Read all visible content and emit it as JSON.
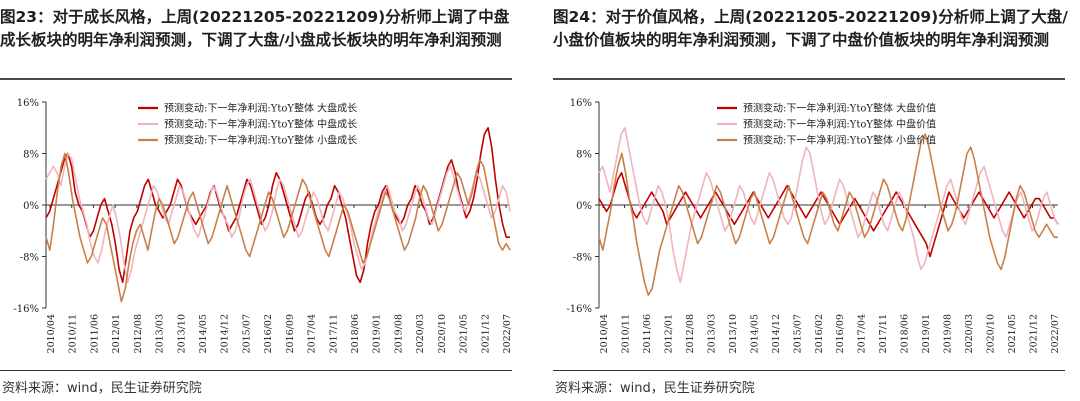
{
  "charts": [
    {
      "title": "图23：对于成长风格，上周(20221205-20221209)分析师上调了中盘成长板块的明年净利润预测，下调了大盘/小盘成长板块的明年净利润预测",
      "source": "资料来源：wind，民生证券研究院"
    },
    {
      "title": "图24：对于价值风格，上周(20221205-20221209)分析师上调了大盘/小盘价值板块的明年净利润预测，下调了中盘价值板块的明年净利润预测",
      "source": "资料来源：wind，民生证券研究院"
    }
  ],
  "chart_data": [
    {
      "type": "line",
      "title": "对于成长风格，上周(20221205-20221209)分析师上调了中盘成长板块的明年净利润预测，下调了大盘/小盘成长板块的明年净利润预测",
      "ylim": [
        -16,
        16
      ],
      "yticks": [
        -16,
        -8,
        0,
        8,
        16
      ],
      "ytick_labels": [
        "-16%",
        "-8%",
        "0%",
        "8%",
        "16%"
      ],
      "x_tick_labels": [
        "2010/04",
        "2010/11",
        "2011/06",
        "2012/01",
        "2012/08",
        "2013/03",
        "2013/10",
        "2014/05",
        "2014/12",
        "2015/07",
        "2016/02",
        "2016/09",
        "2017/04",
        "2017/11",
        "2018/06",
        "2019/01",
        "2019/08",
        "2020/03",
        "2020/10",
        "2021/05",
        "2021/12",
        "2022/07"
      ],
      "legend_position": "top-right",
      "series": [
        {
          "name": "预测变动:下一年净利润:YtoY整体 大盘成长",
          "color": "#c00000",
          "values": [
            -2,
            -1,
            1,
            3,
            5,
            7,
            8,
            6,
            2,
            0,
            -1,
            -3,
            -5,
            -4,
            -2,
            0,
            1,
            -1,
            -3,
            -6,
            -10,
            -12,
            -8,
            -4,
            -2,
            -1,
            1,
            3,
            4,
            2,
            0,
            -1,
            -2,
            -1,
            0,
            2,
            4,
            3,
            1,
            -1,
            -2,
            -3,
            -2,
            -1,
            0,
            2,
            3,
            1,
            -1,
            -2,
            -4,
            -3,
            -2,
            0,
            2,
            4,
            3,
            1,
            -1,
            -3,
            -2,
            0,
            3,
            5,
            4,
            2,
            0,
            -2,
            -4,
            -3,
            -1,
            1,
            2,
            0,
            -2,
            -3,
            -2,
            0,
            1,
            3,
            2,
            0,
            -2,
            -5,
            -8,
            -11,
            -12,
            -10,
            -6,
            -3,
            -1,
            0,
            2,
            3,
            1,
            -1,
            -2,
            -3,
            -2,
            0,
            1,
            3,
            2,
            0,
            -1,
            -3,
            -2,
            0,
            2,
            4,
            6,
            7,
            5,
            2,
            0,
            -2,
            -1,
            1,
            4,
            8,
            11,
            12,
            9,
            4,
            0,
            -3,
            -5,
            -5
          ]
        },
        {
          "name": "预测变动:下一年净利润:YtoY整体 中盘成长",
          "color": "#f0b4bc",
          "values": [
            4,
            5,
            6,
            5,
            3,
            6,
            8,
            7,
            4,
            1,
            -1,
            -3,
            -6,
            -8,
            -9,
            -7,
            -4,
            -2,
            0,
            -2,
            -5,
            -9,
            -12,
            -10,
            -7,
            -5,
            -3,
            -1,
            1,
            3,
            2,
            0,
            -2,
            -3,
            -1,
            1,
            3,
            2,
            0,
            -2,
            -4,
            -5,
            -3,
            -1,
            1,
            3,
            2,
            0,
            -2,
            -3,
            -5,
            -4,
            -2,
            1,
            3,
            4,
            2,
            0,
            -2,
            -4,
            -3,
            -1,
            2,
            4,
            3,
            1,
            -1,
            -3,
            -5,
            -4,
            -2,
            0,
            2,
            1,
            -1,
            -3,
            -4,
            -2,
            0,
            2,
            1,
            -1,
            -3,
            -6,
            -8,
            -10,
            -9,
            -7,
            -4,
            -2,
            0,
            2,
            3,
            1,
            -1,
            -2,
            -4,
            -3,
            -1,
            1,
            3,
            2,
            0,
            -2,
            -3,
            -1,
            1,
            3,
            5,
            6,
            4,
            2,
            0,
            -1,
            1,
            3,
            5,
            4,
            2,
            0,
            -2,
            -1,
            1,
            3,
            2,
            -1
          ]
        },
        {
          "name": "预测变动:下一年净利润:YtoY整体 小盘成长",
          "color": "#c8804a",
          "values": [
            -5,
            -7,
            -3,
            2,
            6,
            8,
            5,
            1,
            -2,
            -5,
            -7,
            -9,
            -8,
            -6,
            -4,
            -2,
            -3,
            -6,
            -9,
            -12,
            -15,
            -13,
            -9,
            -6,
            -4,
            -3,
            -5,
            -7,
            -4,
            -1,
            1,
            0,
            -2,
            -4,
            -6,
            -5,
            -3,
            -1,
            1,
            2,
            0,
            -2,
            -4,
            -6,
            -5,
            -3,
            -1,
            1,
            3,
            1,
            -1,
            -3,
            -5,
            -7,
            -8,
            -6,
            -4,
            -2,
            0,
            2,
            1,
            -1,
            -3,
            -5,
            -4,
            -2,
            0,
            2,
            4,
            3,
            1,
            -1,
            -3,
            -5,
            -7,
            -8,
            -6,
            -4,
            -2,
            0,
            -1,
            -3,
            -5,
            -7,
            -9,
            -8,
            -6,
            -4,
            -2,
            0,
            2,
            1,
            -1,
            -3,
            -5,
            -7,
            -6,
            -4,
            -2,
            1,
            3,
            2,
            0,
            -2,
            -4,
            -3,
            -1,
            1,
            3,
            5,
            4,
            2,
            0,
            2,
            5,
            7,
            6,
            3,
            0,
            -3,
            -6,
            -7,
            -6,
            -7
          ]
        }
      ]
    },
    {
      "type": "line",
      "title": "对于价值风格，上周(20221205-20221209)分析师上调了大盘/小盘价值板块的明年净利润预测，下调了中盘价值板块的明年净利润预测",
      "ylim": [
        -16,
        16
      ],
      "yticks": [
        -16,
        -8,
        0,
        8,
        16
      ],
      "ytick_labels": [
        "-16%",
        "-8%",
        "0%",
        "8%",
        "16%"
      ],
      "x_tick_labels": [
        "2010/04",
        "2010/11",
        "2011/06",
        "2012/01",
        "2012/08",
        "2013/03",
        "2013/10",
        "2014/05",
        "2014/12",
        "2015/07",
        "2016/02",
        "2016/09",
        "2017/04",
        "2017/11",
        "2018/06",
        "2019/01",
        "2019/08",
        "2020/03",
        "2020/10",
        "2021/05",
        "2021/12",
        "2022/07"
      ],
      "legend_position": "top-right",
      "series": [
        {
          "name": "预测变动:下一年净利润:YtoY整体 大盘价值",
          "color": "#c00000",
          "values": [
            1,
            0,
            -1,
            0,
            2,
            4,
            5,
            3,
            1,
            -1,
            -2,
            -1,
            0,
            1,
            2,
            1,
            0,
            -1,
            -3,
            -2,
            -1,
            0,
            1,
            2,
            1,
            0,
            -1,
            -2,
            -1,
            0,
            1,
            2,
            1,
            0,
            -1,
            -2,
            -3,
            -2,
            -1,
            0,
            1,
            2,
            1,
            0,
            -1,
            -2,
            -1,
            0,
            1,
            2,
            3,
            2,
            1,
            0,
            -1,
            -2,
            -1,
            0,
            1,
            2,
            1,
            0,
            -1,
            -2,
            -3,
            -2,
            -1,
            0,
            1,
            0,
            -1,
            -2,
            -3,
            -4,
            -3,
            -2,
            -1,
            0,
            1,
            2,
            1,
            0,
            -1,
            -2,
            -3,
            -4,
            -5,
            -6,
            -8,
            -6,
            -4,
            -2,
            0,
            2,
            1,
            0,
            -1,
            -2,
            -1,
            0,
            1,
            2,
            1,
            0,
            -1,
            -2,
            -1,
            0,
            1,
            2,
            1,
            0,
            -1,
            -2,
            -1,
            0,
            1,
            1,
            0,
            -1,
            -2,
            -2,
            -3
          ]
        },
        {
          "name": "预测变动:下一年净利润:YtoY整体 中盘价值",
          "color": "#f0b4bc",
          "values": [
            5,
            6,
            4,
            2,
            5,
            8,
            11,
            12,
            9,
            6,
            3,
            0,
            -2,
            -3,
            -1,
            1,
            3,
            2,
            0,
            -3,
            -7,
            -10,
            -12,
            -9,
            -6,
            -3,
            -1,
            1,
            3,
            5,
            4,
            2,
            0,
            -2,
            -4,
            -3,
            -1,
            1,
            3,
            2,
            0,
            -2,
            -3,
            -1,
            1,
            3,
            5,
            4,
            2,
            0,
            -2,
            -3,
            -2,
            1,
            4,
            7,
            9,
            8,
            5,
            2,
            -1,
            -3,
            -2,
            0,
            2,
            4,
            3,
            1,
            -1,
            -3,
            -5,
            -4,
            -2,
            0,
            2,
            1,
            -1,
            -3,
            -4,
            -2,
            0,
            2,
            1,
            -1,
            -3,
            -5,
            -8,
            -10,
            -9,
            -7,
            -5,
            -3,
            -1,
            1,
            3,
            4,
            2,
            0,
            -2,
            -3,
            -1,
            1,
            3,
            5,
            6,
            4,
            2,
            0,
            -2,
            -4,
            -5,
            -3,
            -1,
            1,
            2,
            0,
            -2,
            -4,
            -3,
            -1,
            1,
            2,
            0,
            -2,
            -3
          ]
        },
        {
          "name": "预测变动:下一年净利润:YtoY整体 小盘价值",
          "color": "#c8804a",
          "values": [
            -5,
            -7,
            -4,
            -1,
            3,
            6,
            8,
            5,
            1,
            -2,
            -6,
            -9,
            -12,
            -14,
            -13,
            -10,
            -7,
            -5,
            -3,
            -1,
            1,
            3,
            2,
            0,
            -2,
            -4,
            -6,
            -5,
            -3,
            -1,
            1,
            3,
            2,
            0,
            -2,
            -4,
            -6,
            -5,
            -3,
            -1,
            1,
            2,
            0,
            -2,
            -4,
            -6,
            -5,
            -3,
            -1,
            1,
            3,
            1,
            -1,
            -3,
            -5,
            -6,
            -4,
            -2,
            0,
            2,
            1,
            -1,
            -3,
            -4,
            -2,
            0,
            2,
            1,
            -1,
            -3,
            -5,
            -4,
            -2,
            0,
            2,
            4,
            3,
            1,
            -1,
            -3,
            -4,
            -2,
            1,
            4,
            7,
            10,
            11,
            9,
            6,
            3,
            0,
            -2,
            -4,
            -3,
            -1,
            2,
            5,
            8,
            9,
            7,
            4,
            1,
            -2,
            -5,
            -7,
            -9,
            -10,
            -8,
            -5,
            -2,
            1,
            3,
            2,
            0,
            -2,
            -4,
            -5,
            -4,
            -3,
            -4,
            -5,
            -5
          ]
        }
      ]
    }
  ]
}
